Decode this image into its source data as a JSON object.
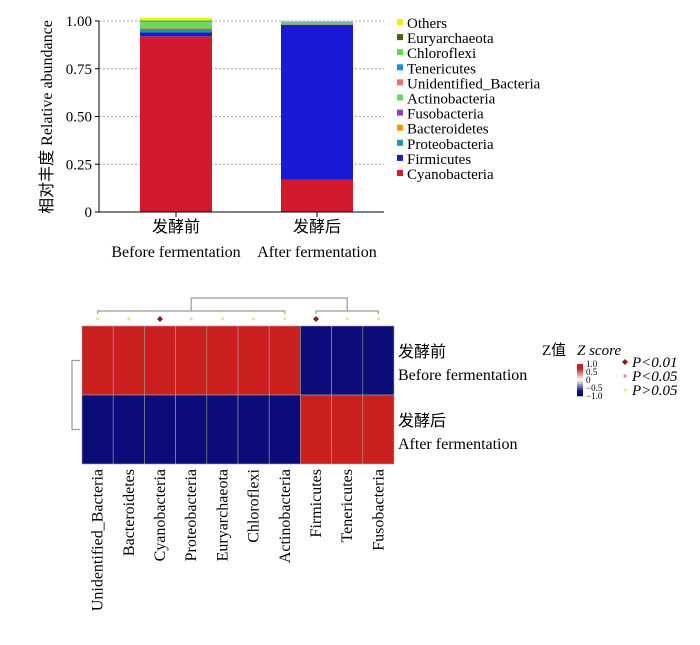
{
  "chart_data": [
    {
      "type": "bar",
      "stacked": true,
      "ylabel": "相对丰度 Relative abundance",
      "ylim": [
        0,
        1.0
      ],
      "yticks": [
        "0",
        "0.25",
        "0.50",
        "0.75",
        "1.00"
      ],
      "ytick_values": [
        0,
        0.25,
        0.5,
        0.75,
        1.0
      ],
      "grid": "horizontal dotted",
      "legend_position": "right",
      "categories": [
        {
          "cn": "发酵前",
          "en": "Before fermentation"
        },
        {
          "cn": "发酵后",
          "en": "After fermentation"
        }
      ],
      "series": [
        {
          "name": "Cyanobacteria",
          "color": "#d4182e",
          "values": [
            0.92,
            0.17
          ]
        },
        {
          "name": "Firmicutes",
          "color": "#1a1ad6",
          "values": [
            0.02,
            0.81
          ]
        },
        {
          "name": "Proteobacteria",
          "color": "#1f9a96",
          "values": [
            0.02,
            0.002
          ]
        },
        {
          "name": "Bacteroidetes",
          "color": "#f5960a",
          "values": [
            0.003,
            0.002
          ]
        },
        {
          "name": "Fusobacteria",
          "color": "#8a40c8",
          "values": [
            0.002,
            0.002
          ]
        },
        {
          "name": "Actinobacteria",
          "color": "#66d966",
          "values": [
            0.03,
            0.006
          ]
        },
        {
          "name": "Unidentified_Bacteria",
          "color": "#f07070",
          "values": [
            0.001,
            0.001
          ]
        },
        {
          "name": "Tenericutes",
          "color": "#1e88e5",
          "values": [
            0.004,
            0.002
          ]
        },
        {
          "name": "Chloroflexi",
          "color": "#55e043",
          "values": [
            0.003,
            0.001
          ]
        },
        {
          "name": "Euryarchaeota",
          "color": "#5a5a00",
          "values": [
            0.001,
            0.001
          ]
        },
        {
          "name": "Others",
          "color": "#f3ef00",
          "values": [
            0.013,
            0.003
          ]
        }
      ],
      "legend_order": [
        "Others",
        "Euryarchaeota",
        "Chloroflexi",
        "Tenericutes",
        "Unidentified_Bacteria",
        "Actinobacteria",
        "Fusobacteria",
        "Bacteroidetes",
        "Proteobacteria",
        "Firmicutes",
        "Cyanobacteria"
      ]
    },
    {
      "type": "heatmap",
      "columns": [
        "Unidentified_Bacteria",
        "Bacteroidetes",
        "Cyanobacteria",
        "Proteobacteria",
        "Euryarchaeota",
        "Chloroflexi",
        "Actinobacteria",
        "Firmicutes",
        "Tenericutes",
        "Fusobacteria"
      ],
      "rows": [
        {
          "cn": "发酵前",
          "en": "Before fermentation"
        },
        {
          "cn": "发酵后",
          "en": "After fermentation"
        }
      ],
      "z": [
        [
          0.71,
          0.71,
          0.71,
          0.71,
          0.71,
          0.71,
          0.71,
          -0.71,
          -0.71,
          -0.71
        ],
        [
          -0.71,
          -0.71,
          -0.71,
          -0.71,
          -0.71,
          -0.71,
          -0.71,
          0.71,
          0.71,
          0.71
        ]
      ],
      "significance": [
        "P>0.05",
        "P>0.05",
        "P<0.01",
        "P>0.05",
        "P>0.05",
        "P>0.05",
        "P>0.05",
        "P<0.01",
        "P>0.05",
        "P>0.05"
      ],
      "colorscale": {
        "min": -1.0,
        "max": 1.0,
        "low": "#0a0a78",
        "high": "#cc1f1f"
      },
      "colorbar_title_cn": "Z值",
      "colorbar_title_en": "Z score",
      "colorbar_ticks": [
        "1.0",
        "0.5",
        "0",
        "−0.5",
        "−1.0"
      ],
      "colorbar_tick_values": [
        1.0,
        0.5,
        0,
        -0.5,
        -1.0
      ],
      "significance_legend": [
        {
          "label": "P<0.01",
          "color": "#8b1a1a"
        },
        {
          "label": "P<0.05",
          "color": "#f08080"
        },
        {
          "label": "P>0.05",
          "color": "#f3df8a"
        }
      ]
    }
  ]
}
